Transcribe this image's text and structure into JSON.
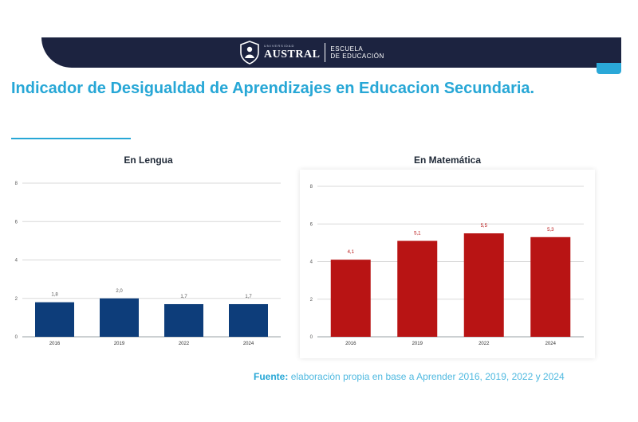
{
  "header": {
    "university_tagline": "UNIVERSIDAD",
    "university": "AUSTRAL",
    "school_line1": "ESCUELA",
    "school_line2": "DE EDUCACIÓN"
  },
  "page": {
    "title": "Indicador de Desigualdad de Aprendizajes en Educacion Secundaria."
  },
  "colors": {
    "title_accent": "#27a7d6",
    "header_band": "#1c2340",
    "lengua_bars": "#0d3d7a",
    "matematica_bars": "#b81414"
  },
  "chart_data": [
    {
      "type": "bar",
      "title": "En Lengua",
      "categories": [
        "2016",
        "2019",
        "2022",
        "2024"
      ],
      "values": [
        1.8,
        2.0,
        1.7,
        1.7
      ],
      "value_labels": [
        "1,8",
        "2,0",
        "1,7",
        "1,7"
      ],
      "ylim": [
        0,
        8
      ],
      "yticks": [
        0,
        2,
        4,
        6,
        8
      ],
      "grid": true,
      "color": "#0d3d7a"
    },
    {
      "type": "bar",
      "title": "En Matemática",
      "categories": [
        "2016",
        "2019",
        "2022",
        "2024"
      ],
      "values": [
        4.1,
        5.1,
        5.5,
        5.3
      ],
      "value_labels": [
        "4,1",
        "5,1",
        "5,5",
        "5,3"
      ],
      "ylim": [
        0,
        8
      ],
      "yticks": [
        0,
        2,
        4,
        6,
        8
      ],
      "grid": true,
      "color": "#b81414"
    }
  ],
  "source": {
    "label": "Fuente:",
    "text": "elaboración propia en base a Aprender 2016, 2019, 2022 y 2024"
  }
}
